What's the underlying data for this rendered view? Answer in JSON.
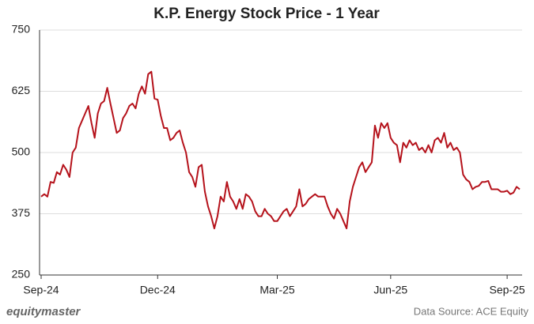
{
  "chart_data": {
    "type": "line",
    "title": "K.P. Energy Stock Price - 1 Year",
    "categories": [
      "Sep-24",
      null,
      null,
      null,
      null,
      null,
      null,
      null,
      null,
      null,
      null,
      null,
      null,
      null,
      null,
      null,
      null,
      null,
      null,
      null,
      null,
      null,
      null,
      null,
      null,
      null,
      null,
      null,
      null,
      null,
      null,
      null,
      null,
      null,
      null,
      null,
      null,
      "Dec-24",
      null,
      null,
      null,
      null,
      null,
      null,
      null,
      null,
      null,
      null,
      null,
      null,
      null,
      null,
      null,
      null,
      null,
      null,
      null,
      null,
      null,
      null,
      null,
      null,
      null,
      null,
      null,
      null,
      null,
      null,
      null,
      null,
      null,
      null,
      null,
      null,
      null,
      "Mar-25",
      null,
      null,
      null,
      null,
      null,
      null,
      null,
      null,
      null,
      null,
      null,
      null,
      null,
      null,
      null,
      null,
      null,
      null,
      null,
      null,
      null,
      null,
      null,
      null,
      null,
      null,
      null,
      null,
      null,
      null,
      null,
      null,
      null,
      null,
      null,
      "Jun-25",
      null,
      null,
      null,
      null,
      null,
      null,
      null,
      null,
      null,
      null,
      null,
      null,
      null,
      null,
      null,
      null,
      null,
      null,
      null,
      null,
      null,
      null,
      null,
      null,
      null,
      null,
      null,
      null,
      null,
      null,
      null,
      null,
      null,
      null,
      null,
      null,
      "Sep-25",
      null,
      null,
      null,
      null
    ],
    "values": [
      410,
      415,
      410,
      440,
      438,
      460,
      455,
      475,
      465,
      450,
      500,
      510,
      550,
      565,
      580,
      595,
      560,
      530,
      580,
      600,
      605,
      632,
      600,
      570,
      540,
      545,
      570,
      580,
      595,
      600,
      590,
      620,
      635,
      620,
      660,
      665,
      610,
      608,
      575,
      550,
      550,
      525,
      530,
      540,
      545,
      520,
      500,
      460,
      450,
      430,
      470,
      475,
      420,
      390,
      370,
      345,
      370,
      410,
      400,
      440,
      410,
      400,
      385,
      405,
      385,
      415,
      410,
      400,
      380,
      370,
      370,
      385,
      375,
      370,
      360,
      360,
      370,
      380,
      385,
      370,
      380,
      390,
      425,
      390,
      395,
      405,
      410,
      415,
      410,
      410,
      410,
      390,
      375,
      365,
      385,
      375,
      360,
      345,
      400,
      430,
      450,
      470,
      480,
      460,
      470,
      480,
      555,
      530,
      560,
      550,
      560,
      530,
      520,
      515,
      480,
      520,
      510,
      525,
      515,
      520,
      505,
      510,
      500,
      515,
      500,
      525,
      530,
      520,
      540,
      510,
      520,
      505,
      510,
      500,
      455,
      445,
      440,
      425,
      430,
      432,
      440,
      440,
      442,
      425,
      425,
      425,
      420,
      420,
      422,
      415,
      418,
      430,
      425
    ],
    "color": "#b5121b",
    "ylim": [
      250,
      750
    ],
    "yticks": [
      250,
      375,
      500,
      625,
      750
    ],
    "grid": true,
    "logo": "equitymaster",
    "source": "Data Source: ACE Equity"
  }
}
